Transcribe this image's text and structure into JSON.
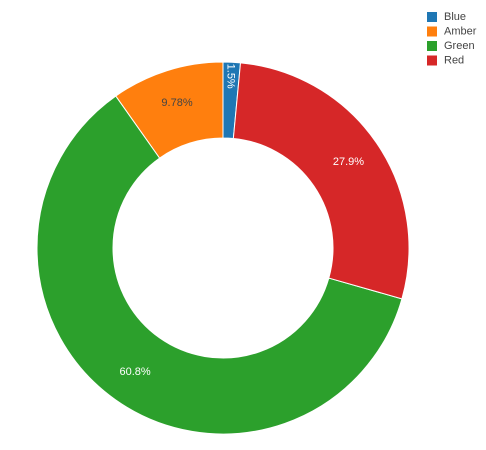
{
  "chart_data": {
    "type": "pie",
    "labels": [
      "Blue",
      "Amber",
      "Green",
      "Red"
    ],
    "values": [
      1.5,
      9.78,
      60.8,
      27.9
    ],
    "value_labels": [
      "1.5%",
      "9.78%",
      "60.8%",
      "27.9%"
    ],
    "colors": [
      "#1f77b4",
      "#ff7f0e",
      "#2ca02c",
      "#d62728"
    ],
    "direction": "counterclockwise",
    "legend": "top-right"
  }
}
